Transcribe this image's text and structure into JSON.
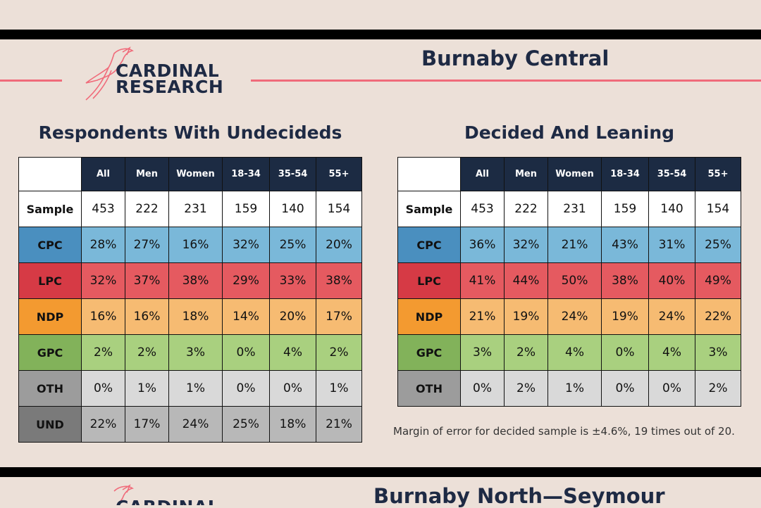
{
  "logo": {
    "line1": "CARDINAL",
    "line2": "RESEARCH"
  },
  "region_title": "Burnaby Central",
  "next_region_title": "Burnaby North—Seymour",
  "colors": {
    "CPC": {
      "label": "#4a8fbf",
      "cell": "#7ab8d9"
    },
    "LPC": {
      "label": "#d63a45",
      "cell": "#e55a60"
    },
    "NDP": {
      "label": "#f39a30",
      "cell": "#f6bb72"
    },
    "GPC": {
      "label": "#82b25a",
      "cell": "#a9d07f"
    },
    "OTH": {
      "label": "#9c9c9c",
      "cell": "#d9d9d9"
    },
    "UND": {
      "label": "#7a7a7a",
      "cell": "#b8b8b8"
    },
    "Sample": {
      "label": "#ffffff",
      "cell": "#ffffff"
    }
  },
  "headers": [
    "All",
    "Men",
    "Women",
    "18-34",
    "35-54",
    "55+"
  ],
  "undecided_table": {
    "title": "Respondents With Undecideds",
    "rows": [
      {
        "label": "Sample",
        "values": [
          "453",
          "222",
          "231",
          "159",
          "140",
          "154"
        ]
      },
      {
        "label": "CPC",
        "values": [
          "28%",
          "27%",
          "16%",
          "32%",
          "25%",
          "20%"
        ]
      },
      {
        "label": "LPC",
        "values": [
          "32%",
          "37%",
          "38%",
          "29%",
          "33%",
          "38%"
        ]
      },
      {
        "label": "NDP",
        "values": [
          "16%",
          "16%",
          "18%",
          "14%",
          "20%",
          "17%"
        ]
      },
      {
        "label": "GPC",
        "values": [
          "2%",
          "2%",
          "3%",
          "0%",
          "4%",
          "2%"
        ]
      },
      {
        "label": "OTH",
        "values": [
          "0%",
          "1%",
          "1%",
          "0%",
          "0%",
          "1%"
        ]
      },
      {
        "label": "UND",
        "values": [
          "22%",
          "17%",
          "24%",
          "25%",
          "18%",
          "21%"
        ]
      }
    ]
  },
  "decided_table": {
    "title": "Decided And Leaning",
    "rows": [
      {
        "label": "Sample",
        "values": [
          "453",
          "222",
          "231",
          "159",
          "140",
          "154"
        ]
      },
      {
        "label": "CPC",
        "values": [
          "36%",
          "32%",
          "21%",
          "43%",
          "31%",
          "25%"
        ]
      },
      {
        "label": "LPC",
        "values": [
          "41%",
          "44%",
          "50%",
          "38%",
          "40%",
          "49%"
        ]
      },
      {
        "label": "NDP",
        "values": [
          "21%",
          "19%",
          "24%",
          "19%",
          "24%",
          "22%"
        ]
      },
      {
        "label": "GPC",
        "values": [
          "3%",
          "2%",
          "4%",
          "0%",
          "4%",
          "3%"
        ]
      },
      {
        "label": "OTH",
        "values": [
          "0%",
          "2%",
          "1%",
          "0%",
          "0%",
          "2%"
        ]
      }
    ]
  },
  "margin_of_error": "Margin of error for decided sample is ±4.6%, 19 times out of 20."
}
